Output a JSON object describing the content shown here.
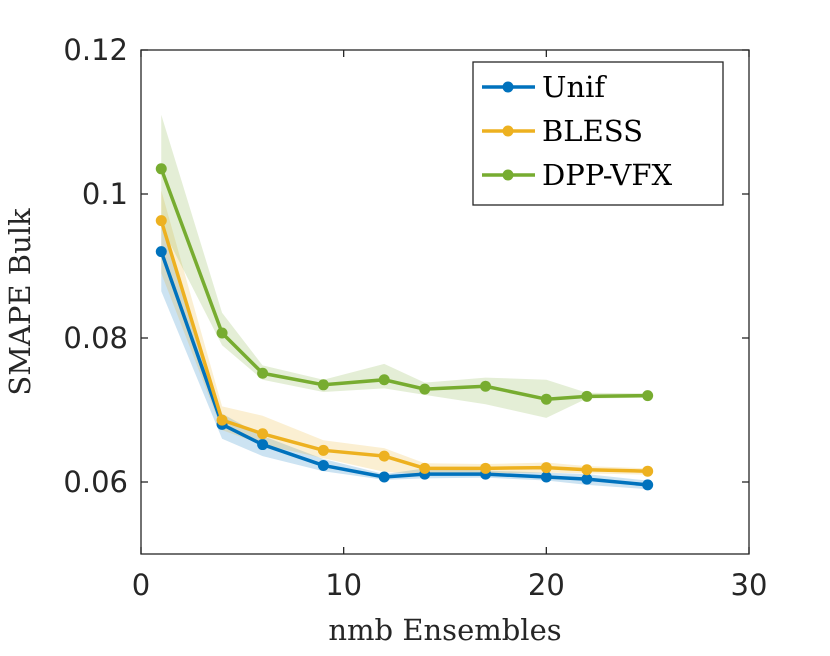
{
  "chart_data": {
    "type": "line",
    "title": "",
    "xlabel": "nmb Ensembles",
    "ylabel": "SMAPE Bulk",
    "xlim": [
      0,
      30
    ],
    "ylim": [
      0.05,
      0.12
    ],
    "xticks": [
      0,
      10,
      20,
      30
    ],
    "xtick_labels": [
      "0",
      "10",
      "20",
      "30"
    ],
    "yticks": [
      0.06,
      0.08,
      0.1,
      0.12
    ],
    "ytick_labels": [
      "0.06",
      "0.08",
      "0.1",
      "0.12"
    ],
    "grid": false,
    "legend_position": "top-right",
    "x": [
      1,
      4,
      6,
      9,
      12,
      14,
      17,
      20,
      22,
      25
    ],
    "series": [
      {
        "name": "Unif",
        "color": "#0072BD",
        "values": [
          0.092,
          0.068,
          0.0652,
          0.0623,
          0.0607,
          0.0611,
          0.0611,
          0.0607,
          0.0604,
          0.0596
        ],
        "lower": [
          0.0865,
          0.066,
          0.0636,
          0.0615,
          0.0603,
          0.0605,
          0.0606,
          0.0602,
          0.0596,
          0.059
        ],
        "upper": [
          0.0965,
          0.0695,
          0.0664,
          0.0632,
          0.0611,
          0.0619,
          0.0616,
          0.0613,
          0.0611,
          0.0602
        ]
      },
      {
        "name": "BLESS",
        "color": "#EDB120",
        "values": [
          0.0963,
          0.0686,
          0.0667,
          0.0644,
          0.0636,
          0.0619,
          0.0619,
          0.062,
          0.0617,
          0.0615
        ],
        "lower": [
          0.089,
          0.0672,
          0.0652,
          0.0633,
          0.0614,
          0.0611,
          0.0612,
          0.0613,
          0.0612,
          0.061
        ],
        "upper": [
          0.1005,
          0.0705,
          0.0692,
          0.0658,
          0.0647,
          0.0626,
          0.0625,
          0.0627,
          0.0622,
          0.0619
        ]
      },
      {
        "name": "DPP-VFX",
        "color": "#77AC30",
        "values": [
          0.1035,
          0.0807,
          0.0751,
          0.0735,
          0.0742,
          0.0729,
          0.0733,
          0.0715,
          0.0719,
          0.072
        ],
        "lower": [
          0.0955,
          0.079,
          0.0742,
          0.0725,
          0.073,
          0.0721,
          0.0708,
          0.0689,
          0.0716,
          0.0717
        ],
        "upper": [
          0.111,
          0.0835,
          0.0762,
          0.0742,
          0.0764,
          0.0738,
          0.0745,
          0.0742,
          0.0724,
          0.0723
        ]
      }
    ]
  }
}
